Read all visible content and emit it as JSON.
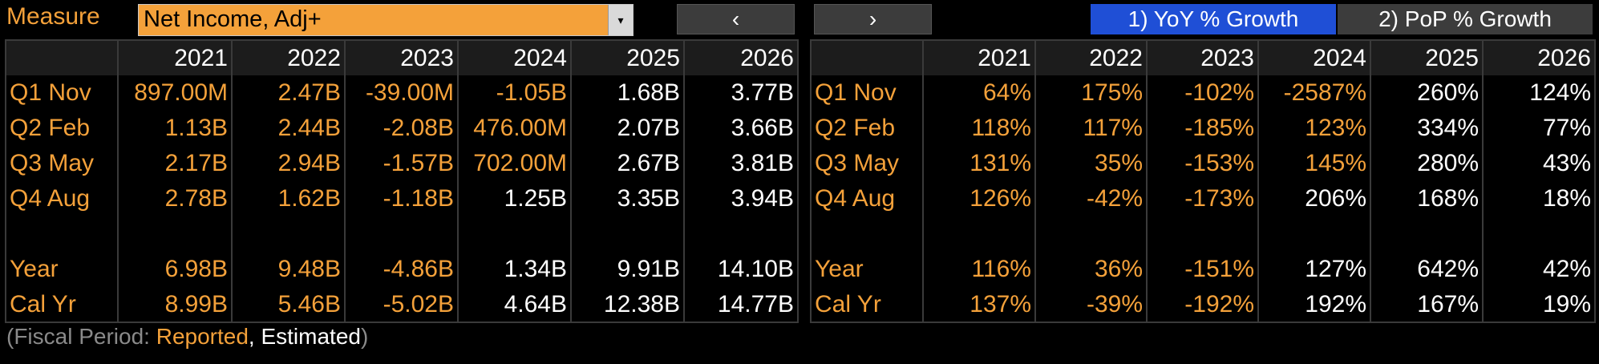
{
  "topbar": {
    "measure_label": "Measure",
    "measure_value": "Net Income, Adj+",
    "dropdown_arrow": "▾",
    "prev_label": "‹",
    "next_label": "›",
    "tab_yoy": "1) YoY % Growth",
    "tab_pop": "2) PoP % Growth",
    "colors": {
      "accent": "#f4a13a",
      "active_tab": "#1f4fd6",
      "inactive": "#3c3c3c"
    }
  },
  "left_table": {
    "columns": [
      "",
      "2021",
      "2022",
      "2023",
      "2024",
      "2025",
      "2026"
    ],
    "rows": [
      {
        "label": "Q1 Nov",
        "cells": [
          {
            "v": "897.00M",
            "c": "orange"
          },
          {
            "v": "2.47B",
            "c": "orange"
          },
          {
            "v": "-39.00M",
            "c": "orange"
          },
          {
            "v": "-1.05B",
            "c": "orange"
          },
          {
            "v": "1.68B",
            "c": "white"
          },
          {
            "v": "3.77B",
            "c": "white"
          }
        ]
      },
      {
        "label": "Q2 Feb",
        "cells": [
          {
            "v": "1.13B",
            "c": "orange"
          },
          {
            "v": "2.44B",
            "c": "orange"
          },
          {
            "v": "-2.08B",
            "c": "orange"
          },
          {
            "v": "476.00M",
            "c": "orange"
          },
          {
            "v": "2.07B",
            "c": "white"
          },
          {
            "v": "3.66B",
            "c": "white"
          }
        ]
      },
      {
        "label": "Q3 May",
        "cells": [
          {
            "v": "2.17B",
            "c": "orange"
          },
          {
            "v": "2.94B",
            "c": "orange"
          },
          {
            "v": "-1.57B",
            "c": "orange"
          },
          {
            "v": "702.00M",
            "c": "orange"
          },
          {
            "v": "2.67B",
            "c": "white"
          },
          {
            "v": "3.81B",
            "c": "white"
          }
        ]
      },
      {
        "label": "Q4 Aug",
        "cells": [
          {
            "v": "2.78B",
            "c": "orange"
          },
          {
            "v": "1.62B",
            "c": "orange"
          },
          {
            "v": "-1.18B",
            "c": "orange"
          },
          {
            "v": "1.25B",
            "c": "white"
          },
          {
            "v": "3.35B",
            "c": "white"
          },
          {
            "v": "3.94B",
            "c": "white"
          }
        ]
      },
      {
        "label": "",
        "cells": [
          {
            "v": "",
            "c": "white"
          },
          {
            "v": "",
            "c": "white"
          },
          {
            "v": "",
            "c": "white"
          },
          {
            "v": "",
            "c": "white"
          },
          {
            "v": "",
            "c": "white"
          },
          {
            "v": "",
            "c": "white"
          }
        ]
      },
      {
        "label": "Year",
        "cells": [
          {
            "v": "6.98B",
            "c": "orange"
          },
          {
            "v": "9.48B",
            "c": "orange"
          },
          {
            "v": "-4.86B",
            "c": "orange"
          },
          {
            "v": "1.34B",
            "c": "white"
          },
          {
            "v": "9.91B",
            "c": "white"
          },
          {
            "v": "14.10B",
            "c": "white"
          }
        ]
      },
      {
        "label": "Cal Yr",
        "cells": [
          {
            "v": "8.99B",
            "c": "orange"
          },
          {
            "v": "5.46B",
            "c": "orange"
          },
          {
            "v": "-5.02B",
            "c": "orange"
          },
          {
            "v": "4.64B",
            "c": "white"
          },
          {
            "v": "12.38B",
            "c": "white"
          },
          {
            "v": "14.77B",
            "c": "white"
          }
        ]
      }
    ]
  },
  "right_table": {
    "columns": [
      "",
      "2021",
      "2022",
      "2023",
      "2024",
      "2025",
      "2026"
    ],
    "rows": [
      {
        "label": "Q1 Nov",
        "cells": [
          {
            "v": "64%",
            "c": "orange"
          },
          {
            "v": "175%",
            "c": "orange"
          },
          {
            "v": "-102%",
            "c": "orange"
          },
          {
            "v": "-2587%",
            "c": "orange"
          },
          {
            "v": "260%",
            "c": "white"
          },
          {
            "v": "124%",
            "c": "white"
          }
        ]
      },
      {
        "label": "Q2 Feb",
        "cells": [
          {
            "v": "118%",
            "c": "orange"
          },
          {
            "v": "117%",
            "c": "orange"
          },
          {
            "v": "-185%",
            "c": "orange"
          },
          {
            "v": "123%",
            "c": "orange"
          },
          {
            "v": "334%",
            "c": "white"
          },
          {
            "v": "77%",
            "c": "white"
          }
        ]
      },
      {
        "label": "Q3 May",
        "cells": [
          {
            "v": "131%",
            "c": "orange"
          },
          {
            "v": "35%",
            "c": "orange"
          },
          {
            "v": "-153%",
            "c": "orange"
          },
          {
            "v": "145%",
            "c": "orange"
          },
          {
            "v": "280%",
            "c": "white"
          },
          {
            "v": "43%",
            "c": "white"
          }
        ]
      },
      {
        "label": "Q4 Aug",
        "cells": [
          {
            "v": "126%",
            "c": "orange"
          },
          {
            "v": "-42%",
            "c": "orange"
          },
          {
            "v": "-173%",
            "c": "orange"
          },
          {
            "v": "206%",
            "c": "white"
          },
          {
            "v": "168%",
            "c": "white"
          },
          {
            "v": "18%",
            "c": "white"
          }
        ]
      },
      {
        "label": "",
        "cells": [
          {
            "v": "",
            "c": "white"
          },
          {
            "v": "",
            "c": "white"
          },
          {
            "v": "",
            "c": "white"
          },
          {
            "v": "",
            "c": "white"
          },
          {
            "v": "",
            "c": "white"
          },
          {
            "v": "",
            "c": "white"
          }
        ]
      },
      {
        "label": "Year",
        "cells": [
          {
            "v": "116%",
            "c": "orange"
          },
          {
            "v": "36%",
            "c": "orange"
          },
          {
            "v": "-151%",
            "c": "orange"
          },
          {
            "v": "127%",
            "c": "white"
          },
          {
            "v": "642%",
            "c": "white"
          },
          {
            "v": "42%",
            "c": "white"
          }
        ]
      },
      {
        "label": "Cal Yr",
        "cells": [
          {
            "v": "137%",
            "c": "orange"
          },
          {
            "v": "-39%",
            "c": "orange"
          },
          {
            "v": "-192%",
            "c": "orange"
          },
          {
            "v": "192%",
            "c": "white"
          },
          {
            "v": "167%",
            "c": "white"
          },
          {
            "v": "19%",
            "c": "white"
          }
        ]
      }
    ]
  },
  "footer": {
    "open": "(Fiscal Period: ",
    "reported": "Reported",
    "sep": ", ",
    "estimated": "Estimated",
    "close": ")"
  }
}
